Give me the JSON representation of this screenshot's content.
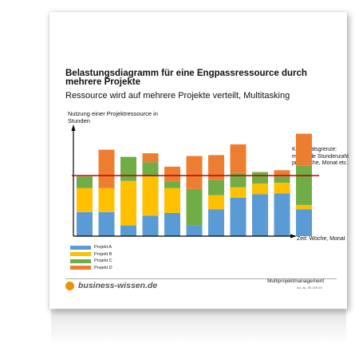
{
  "document": {
    "title": "Belastungsdiagramm für eine Engpassressource durch mehrere Projekte",
    "subtitle": "Ressource wird auf mehrere Projekte verteilt, Multitasking",
    "footer_brand": "business-wissen.de",
    "footer_doc_name": "Multiprojektmanagement",
    "footer_doc_no": "Art.-Nr. 99 199 03"
  },
  "colors": {
    "projekt_a": "#5b9bd5",
    "projekt_b": "#ffc000",
    "projekt_c": "#70ad47",
    "projekt_d": "#ed7d31",
    "capacity_line": "#c00000",
    "brand": "#f39200"
  },
  "chart_data": {
    "type": "bar",
    "stacked": true,
    "ylabel": "Nutzung einer Projektressource in Stunden",
    "xlabel": "Zeit: Woche, Monat",
    "categories": [
      "",
      "",
      "",
      "",
      "",
      "",
      "",
      "",
      "",
      "",
      ""
    ],
    "series": [
      {
        "name": "Projekt A",
        "values": [
          27,
          27,
          12,
          23,
          26,
          12,
          30,
          43,
          47,
          48,
          30
        ]
      },
      {
        "name": "Projekt B",
        "values": [
          27,
          27,
          50,
          44,
          28,
          0,
          16,
          12,
          12,
          12,
          5
        ]
      },
      {
        "name": "Projekt C",
        "values": [
          13,
          0,
          27,
          16,
          7,
          41,
          17,
          16,
          13,
          7,
          44
        ]
      },
      {
        "name": "Projekt D",
        "values": [
          0,
          43,
          0,
          10,
          17,
          37,
          28,
          32,
          0,
          7,
          36
        ]
      }
    ],
    "capacity": {
      "label": "Kapazitätsgrenze: maximale Stundenzahl pro Woche, Monat etc.",
      "value": 68
    },
    "ylim": [
      0,
      120
    ],
    "grid": false,
    "legend": "bottom-left"
  }
}
